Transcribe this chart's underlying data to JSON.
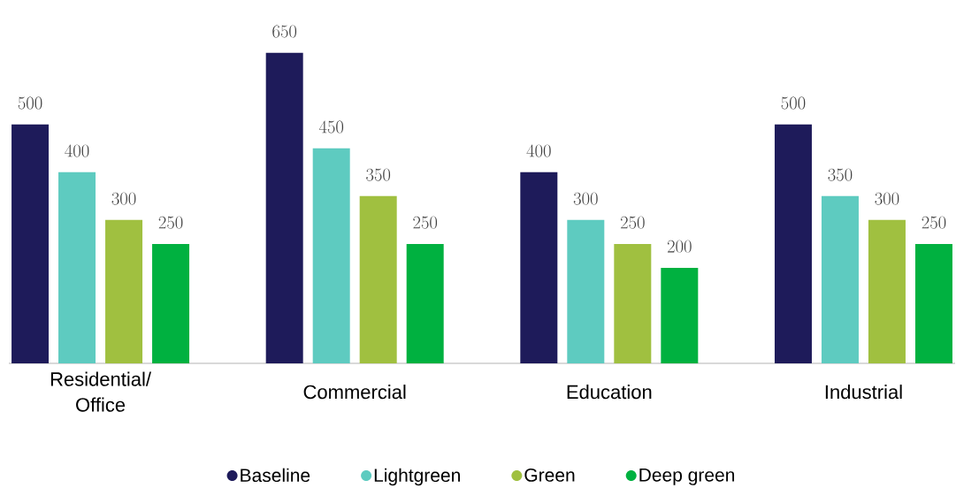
{
  "chart_data": {
    "type": "bar",
    "categories": [
      "Residential/ Office",
      "Commercial",
      "Education",
      "Industrial"
    ],
    "series": [
      {
        "name": "Baseline",
        "color": "#1e1b5a",
        "values": [
          500,
          650,
          400,
          500
        ]
      },
      {
        "name": "Lightgreen",
        "color": "#5ecbc0",
        "values": [
          400,
          450,
          300,
          350
        ]
      },
      {
        "name": "Green",
        "color": "#a0c040",
        "values": [
          300,
          350,
          250,
          300
        ]
      },
      {
        "name": "Deep green",
        "color": "#00b140",
        "values": [
          250,
          250,
          200,
          250
        ]
      }
    ],
    "data_labels": true,
    "legend": "bottom"
  }
}
